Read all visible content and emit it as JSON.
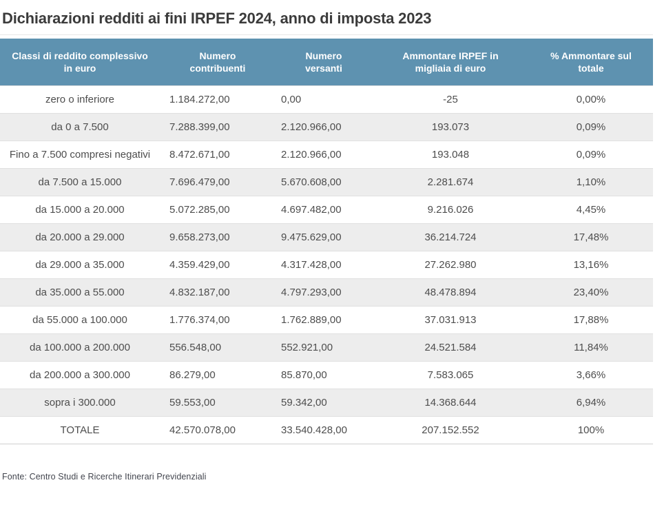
{
  "title": "Dichiarazioni redditi ai fini IRPEF 2024, anno di imposta 2023",
  "source_note": "Fonte: Centro Studi e Ricerche Itinerari Previdenziali",
  "colors": {
    "header_bg": "#5e92b0",
    "header_text": "#ffffff",
    "row_alt_bg": "#ededed",
    "body_text": "#4d4d4d",
    "title_text": "#3b3b3b"
  },
  "chart_data": {
    "type": "table",
    "title": "Dichiarazioni redditi ai fini IRPEF 2024, anno di imposta 2023",
    "columns": [
      "Classi di reddito complessivo\nin euro",
      "Numero\ncontribuenti",
      "Numero\nversanti",
      "Ammontare IRPEF in\nmigliaia di euro",
      "% Ammontare sul\ntotale"
    ],
    "rows": [
      [
        "zero o inferiore",
        "1.184.272,00",
        "0,00",
        "-25",
        "0,00%"
      ],
      [
        "da 0 a 7.500",
        "7.288.399,00",
        "2.120.966,00",
        "193.073",
        "0,09%"
      ],
      [
        "Fino a 7.500 compresi negativi",
        "8.472.671,00",
        "2.120.966,00",
        "193.048",
        "0,09%"
      ],
      [
        "da 7.500 a 15.000",
        "7.696.479,00",
        "5.670.608,00",
        "2.281.674",
        "1,10%"
      ],
      [
        "da 15.000 a 20.000",
        "5.072.285,00",
        "4.697.482,00",
        "9.216.026",
        "4,45%"
      ],
      [
        "da 20.000 a 29.000",
        "9.658.273,00",
        "9.475.629,00",
        "36.214.724",
        "17,48%"
      ],
      [
        "da 29.000 a 35.000",
        "4.359.429,00",
        "4.317.428,00",
        "27.262.980",
        "13,16%"
      ],
      [
        "da 35.000 a 55.000",
        "4.832.187,00",
        "4.797.293,00",
        "48.478.894",
        "23,40%"
      ],
      [
        "da 55.000 a 100.000",
        "1.776.374,00",
        "1.762.889,00",
        "37.031.913",
        "17,88%"
      ],
      [
        "da 100.000 a 200.000",
        "556.548,00",
        "552.921,00",
        "24.521.584",
        "11,84%"
      ],
      [
        "da 200.000 a 300.000",
        "86.279,00",
        "85.870,00",
        "7.583.065",
        "3,66%"
      ],
      [
        "sopra i 300.000",
        "59.553,00",
        "59.342,00",
        "14.368.644",
        "6,94%"
      ],
      [
        "TOTALE",
        "42.570.078,00",
        "33.540.428,00",
        "207.152.552",
        "100%"
      ]
    ]
  }
}
